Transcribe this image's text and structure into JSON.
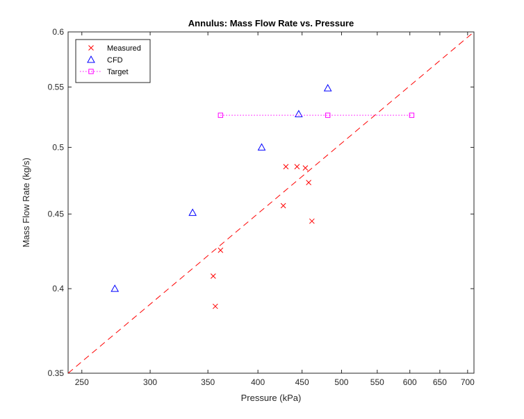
{
  "chart_data": {
    "type": "scatter",
    "title": "Annulus: Mass Flow Rate vs. Pressure",
    "xlabel": "Pressure (kPa)",
    "ylabel": "Mass Flow Rate (kg/s)",
    "xscale": "log",
    "yscale": "log",
    "xlim": [
      241,
      712
    ],
    "ylim": [
      0.35,
      0.6
    ],
    "xticks": [
      250,
      300,
      350,
      400,
      450,
      500,
      550,
      600,
      650,
      700
    ],
    "yticks": [
      0.35,
      0.4,
      0.45,
      0.5,
      0.55,
      0.6
    ],
    "ytick_labels": [
      "0.35",
      "0.4",
      "0.45",
      "0.5",
      "0.55",
      "0.6"
    ],
    "grid": false,
    "box": true,
    "legend": {
      "placement": "top-left"
    },
    "series": [
      {
        "name": "Measured",
        "marker": "x",
        "line": "none",
        "color": "#ff0000",
        "x": [
          355,
          357,
          362,
          428,
          431,
          444,
          454,
          458,
          462
        ],
        "y": [
          0.408,
          0.389,
          0.425,
          0.456,
          0.485,
          0.485,
          0.484,
          0.473,
          0.445
        ]
      },
      {
        "name": "CFD",
        "marker": "triangle",
        "line": "none",
        "color": "#0000ff",
        "x": [
          273,
          336,
          404,
          446,
          482
        ],
        "y": [
          0.4,
          0.451,
          0.5,
          0.527,
          0.549
        ]
      },
      {
        "name": "Target",
        "marker": "square",
        "line": "dotted",
        "color": "#ff00ff",
        "x": [
          362,
          482,
          603
        ],
        "y": [
          0.526,
          0.526,
          0.526
        ]
      }
    ],
    "reference_line": {
      "style": "dashed",
      "color": "#ff0000",
      "x": [
        241,
        712
      ],
      "y": [
        0.35,
        0.6
      ]
    }
  }
}
